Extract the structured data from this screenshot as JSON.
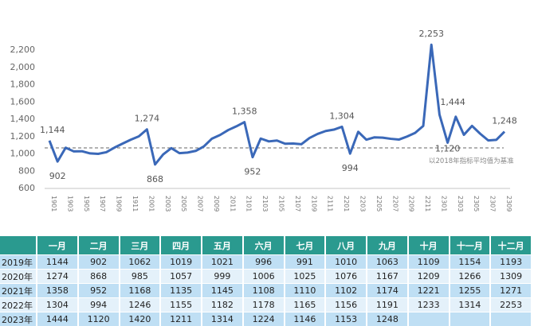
{
  "chart_data": {
    "type": "line",
    "x_tick_labels": [
      "1901",
      "1903",
      "1905",
      "1907",
      "1909",
      "1911",
      "2001",
      "2003",
      "2005",
      "2007",
      "2009",
      "2011",
      "2101",
      "2103",
      "2105",
      "2107",
      "2109",
      "2111",
      "2201",
      "2203",
      "2205",
      "2207",
      "2209",
      "2211",
      "2301",
      "2303",
      "2305",
      "2307",
      "2309"
    ],
    "y_ticks": [
      600,
      800,
      1000,
      1200,
      1400,
      1600,
      1800,
      2000,
      2200
    ],
    "ylim": [
      600,
      2200
    ],
    "grid": false,
    "series": [
      {
        "values": [
          1144,
          902,
          1062,
          1019,
          1021,
          996,
          991,
          1010,
          1063,
          1109,
          1154,
          1193,
          1274,
          868,
          985,
          1057,
          999,
          1006,
          1025,
          1076,
          1167,
          1209,
          1266,
          1309,
          1358,
          952,
          1168,
          1135,
          1145,
          1108,
          1110,
          1102,
          1174,
          1221,
          1255,
          1271,
          1304,
          994,
          1246,
          1155,
          1182,
          1178,
          1165,
          1156,
          1191,
          1233,
          1314,
          2253,
          1444,
          1120,
          1420,
          1211,
          1314,
          1224,
          1146,
          1153,
          1248
        ]
      }
    ],
    "line_color": "#3a68b8",
    "data_labels": [
      {
        "index": 0,
        "text": "1,144",
        "pos": "above"
      },
      {
        "index": 1,
        "text": "902",
        "pos": "below"
      },
      {
        "index": 12,
        "text": "1,274",
        "pos": "above"
      },
      {
        "index": 13,
        "text": "868",
        "pos": "below"
      },
      {
        "index": 24,
        "text": "1,358",
        "pos": "above"
      },
      {
        "index": 25,
        "text": "952",
        "pos": "below"
      },
      {
        "index": 36,
        "text": "1,304",
        "pos": "above"
      },
      {
        "index": 37,
        "text": "994",
        "pos": "below"
      },
      {
        "index": 47,
        "text": "2,253",
        "pos": "above"
      },
      {
        "index": 48,
        "text": "1,444",
        "pos": "right"
      },
      {
        "index": 49,
        "text": "1,120",
        "pos": "below"
      },
      {
        "index": 56,
        "text": "1,248",
        "pos": "above"
      }
    ],
    "baseline": {
      "value": 1060,
      "label": "以2018年指标平均值为基准",
      "color": "#666666"
    }
  },
  "table": {
    "headers": [
      "",
      "一月",
      "二月",
      "三月",
      "四月",
      "五月",
      "六月",
      "七月",
      "八月",
      "九月",
      "十月",
      "十一月",
      "十二月"
    ],
    "rows": [
      [
        "2019年",
        "1144",
        "902",
        "1062",
        "1019",
        "1021",
        "996",
        "991",
        "1010",
        "1063",
        "1109",
        "1154",
        "1193"
      ],
      [
        "2020年",
        "1274",
        "868",
        "985",
        "1057",
        "999",
        "1006",
        "1025",
        "1076",
        "1167",
        "1209",
        "1266",
        "1309"
      ],
      [
        "2021年",
        "1358",
        "952",
        "1168",
        "1135",
        "1145",
        "1108",
        "1110",
        "1102",
        "1174",
        "1221",
        "1255",
        "1271"
      ],
      [
        "2022年",
        "1304",
        "994",
        "1246",
        "1155",
        "1182",
        "1178",
        "1165",
        "1156",
        "1191",
        "1233",
        "1314",
        "2253"
      ],
      [
        "2023年",
        "1444",
        "1120",
        "1420",
        "1211",
        "1314",
        "1224",
        "1146",
        "1153",
        "1248",
        "",
        "",
        ""
      ]
    ],
    "header_color": "#2a9a8f"
  }
}
